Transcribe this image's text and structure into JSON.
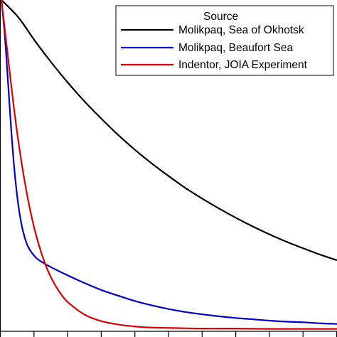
{
  "chart_data": {
    "type": "line",
    "title": "",
    "xlabel": "",
    "ylabel": "",
    "grid": false,
    "legend_position": "top-right",
    "legend_title": "Source",
    "xlim": [
      0,
      1
    ],
    "ylim": [
      0,
      1
    ],
    "series": [
      {
        "name": "Molikpaq, Sea of Okhotsk",
        "color": "#000000",
        "x": [
          0.0,
          0.05,
          0.1,
          0.15,
          0.2,
          0.25,
          0.3,
          0.35,
          0.4,
          0.45,
          0.5,
          0.55,
          0.6,
          0.65,
          0.7,
          0.75,
          0.8,
          0.85,
          0.9,
          0.95,
          1.0
        ],
        "y": [
          1.0,
          0.948,
          0.876,
          0.809,
          0.747,
          0.69,
          0.638,
          0.589,
          0.544,
          0.503,
          0.465,
          0.429,
          0.397,
          0.367,
          0.339,
          0.313,
          0.289,
          0.267,
          0.247,
          0.228,
          0.211
        ]
      },
      {
        "name": "Molikpaq, Beaufort Sea",
        "color": "#0000cc",
        "x": [
          0.0,
          0.01,
          0.02,
          0.03,
          0.04,
          0.05,
          0.06,
          0.07,
          0.08,
          0.1,
          0.12,
          0.15,
          0.2,
          0.25,
          0.3,
          0.35,
          0.4,
          0.45,
          0.5,
          0.55,
          0.6,
          0.65,
          0.7,
          0.75,
          0.8,
          0.85,
          0.9,
          0.95,
          1.0
        ],
        "y": [
          1.0,
          0.894,
          0.746,
          0.595,
          0.471,
          0.381,
          0.319,
          0.278,
          0.251,
          0.222,
          0.206,
          0.189,
          0.164,
          0.141,
          0.12,
          0.103,
          0.087,
          0.074,
          0.063,
          0.054,
          0.047,
          0.041,
          0.036,
          0.032,
          0.028,
          0.025,
          0.023,
          0.02,
          0.018
        ]
      },
      {
        "name": "Indentor, JOIA Experiment",
        "color": "#dd0000",
        "x": [
          0.0,
          0.02,
          0.04,
          0.06,
          0.08,
          0.1,
          0.12,
          0.14,
          0.16,
          0.18,
          0.2,
          0.25,
          0.3,
          0.35,
          0.4,
          0.45,
          0.5,
          0.6,
          0.7,
          0.8,
          0.9,
          1.0
        ],
        "y": [
          1.0,
          0.823,
          0.65,
          0.507,
          0.391,
          0.3,
          0.23,
          0.176,
          0.136,
          0.105,
          0.082,
          0.045,
          0.026,
          0.016,
          0.01,
          0.007,
          0.006,
          0.004,
          0.004,
          0.003,
          0.003,
          0.003
        ]
      }
    ]
  }
}
